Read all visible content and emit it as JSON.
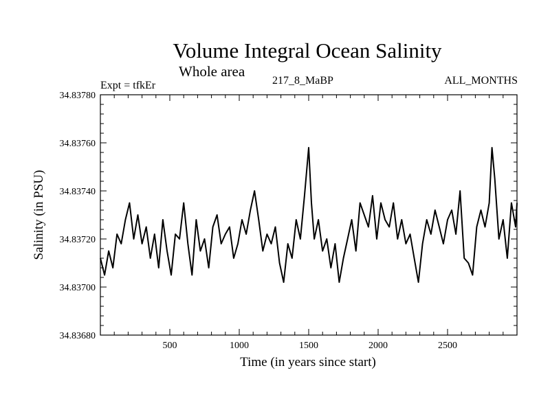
{
  "header": {
    "title": "Volume Integral Ocean Salinity",
    "subtitle": "Whole area",
    "experiment": "Expt = tfkEr",
    "run_id": "217_8_MaBP",
    "months": "ALL_MONTHS"
  },
  "colors": {
    "line": "#000000",
    "axis": "#000000",
    "background": "#ffffff"
  },
  "chart_data": {
    "type": "line",
    "title": "Volume Integral Ocean Salinity",
    "subtitle": "Whole area",
    "xlabel": "Time (in years since start)",
    "ylabel": "Salinity (in PSU)",
    "xlim": [
      0,
      3000
    ],
    "ylim": [
      34.8368,
      34.8378
    ],
    "x_ticks": [
      500,
      1000,
      1500,
      2000,
      2500
    ],
    "y_ticks": [
      34.8368,
      34.837,
      34.8372,
      34.8374,
      34.8376,
      34.8378
    ],
    "y_tick_labels": [
      "34.83680",
      "34.83700",
      "34.83720",
      "34.83740",
      "34.83760",
      "34.83780"
    ],
    "grid": false,
    "series": [
      {
        "x": [
          0,
          30,
          60,
          90,
          120,
          150,
          180,
          210,
          240,
          270,
          300,
          330,
          360,
          390,
          420,
          450,
          480,
          510,
          540,
          570,
          600,
          630,
          660,
          690,
          720,
          750,
          780,
          810,
          840,
          870,
          900,
          930,
          960,
          990,
          1020,
          1050,
          1080,
          1110,
          1140,
          1170,
          1200,
          1230,
          1260,
          1290,
          1320,
          1350,
          1380,
          1410,
          1440,
          1470,
          1500,
          1520,
          1540,
          1570,
          1600,
          1630,
          1660,
          1690,
          1720,
          1750,
          1780,
          1810,
          1840,
          1870,
          1900,
          1930,
          1960,
          1990,
          2020,
          2050,
          2080,
          2110,
          2140,
          2170,
          2200,
          2230,
          2260,
          2290,
          2320,
          2350,
          2380,
          2410,
          2440,
          2470,
          2500,
          2530,
          2560,
          2590,
          2620,
          2650,
          2680,
          2710,
          2740,
          2770,
          2800,
          2820,
          2840,
          2870,
          2900,
          2930,
          2960,
          2990,
          3000
        ],
        "y": [
          34.83712,
          34.83705,
          34.83715,
          34.83708,
          34.83722,
          34.83718,
          34.83728,
          34.83735,
          34.8372,
          34.8373,
          34.83718,
          34.83725,
          34.83712,
          34.83722,
          34.83708,
          34.83728,
          34.83715,
          34.83705,
          34.83722,
          34.8372,
          34.83735,
          34.83718,
          34.83705,
          34.83728,
          34.83715,
          34.8372,
          34.83708,
          34.83725,
          34.8373,
          34.83718,
          34.83722,
          34.83725,
          34.83712,
          34.83718,
          34.83728,
          34.83722,
          34.83732,
          34.8374,
          34.83728,
          34.83715,
          34.83722,
          34.83718,
          34.83725,
          34.8371,
          34.83702,
          34.83718,
          34.83712,
          34.83728,
          34.8372,
          34.83738,
          34.83758,
          34.83735,
          34.8372,
          34.83728,
          34.83715,
          34.8372,
          34.83708,
          34.83718,
          34.83702,
          34.83712,
          34.8372,
          34.83728,
          34.83715,
          34.83735,
          34.8373,
          34.83725,
          34.83738,
          34.8372,
          34.83735,
          34.83728,
          34.83725,
          34.83735,
          34.8372,
          34.83728,
          34.83718,
          34.83722,
          34.83712,
          34.83702,
          34.83718,
          34.83728,
          34.83722,
          34.83732,
          34.83725,
          34.83718,
          34.83728,
          34.83732,
          34.83722,
          34.8374,
          34.83712,
          34.8371,
          34.83705,
          34.83725,
          34.83732,
          34.83725,
          34.83735,
          34.83758,
          34.83745,
          34.8372,
          34.83728,
          34.83712,
          34.83735,
          34.83725,
          34.83735
        ]
      }
    ]
  }
}
